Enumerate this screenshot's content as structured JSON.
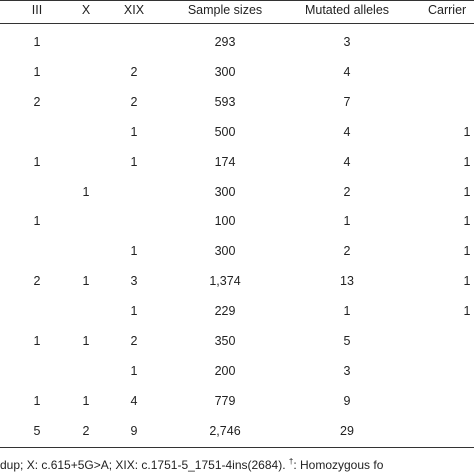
{
  "headers": [
    "III",
    "X",
    "XIX",
    "Sample sizes",
    "Mutated alleles",
    "Carrier"
  ],
  "rows": [
    {
      "iii": "1",
      "x": "",
      "xix": "",
      "sample": "293",
      "mutated": "3",
      "carrier": ""
    },
    {
      "iii": "1",
      "x": "",
      "xix": "2",
      "sample": "300",
      "mutated": "4",
      "carrier": ""
    },
    {
      "iii": "2",
      "x": "",
      "xix": "2",
      "sample": "593",
      "mutated": "7",
      "carrier": ""
    },
    {
      "iii": "",
      "x": "",
      "xix": "1",
      "sample": "500",
      "mutated": "4",
      "carrier": "1"
    },
    {
      "iii": "1",
      "x": "",
      "xix": "1",
      "sample": "174",
      "mutated": "4",
      "carrier": "1"
    },
    {
      "iii": "",
      "x": "1",
      "xix": "",
      "sample": "300",
      "mutated": "2",
      "carrier": "1"
    },
    {
      "iii": "1",
      "x": "",
      "xix": "",
      "sample": "100",
      "mutated": "1",
      "carrier": "1"
    },
    {
      "iii": "",
      "x": "",
      "xix": "1",
      "sample": "300",
      "mutated": "2",
      "carrier": "1"
    },
    {
      "iii": "2",
      "x": "1",
      "xix": "3",
      "sample": "1,374",
      "mutated": "13",
      "carrier": "1"
    },
    {
      "iii": "",
      "x": "",
      "xix": "1",
      "sample": "229",
      "mutated": "1",
      "carrier": "1"
    },
    {
      "iii": "1",
      "x": "1",
      "xix": "2",
      "sample": "350",
      "mutated": "5",
      "carrier": ""
    },
    {
      "iii": "",
      "x": "",
      "xix": "1",
      "sample": "200",
      "mutated": "3",
      "carrier": ""
    },
    {
      "iii": "1",
      "x": "1",
      "xix": "4",
      "sample": "779",
      "mutated": "9",
      "carrier": ""
    },
    {
      "iii": "5",
      "x": "2",
      "xix": "9",
      "sample": "2,746",
      "mutated": "29",
      "carrier": ""
    }
  ],
  "footnote": {
    "text": "dup; X: c.615+5G>A; XIX: c.1751-5_1751-4ins(2684).",
    "dagger": "†",
    "after": ": Homozygous fo"
  }
}
